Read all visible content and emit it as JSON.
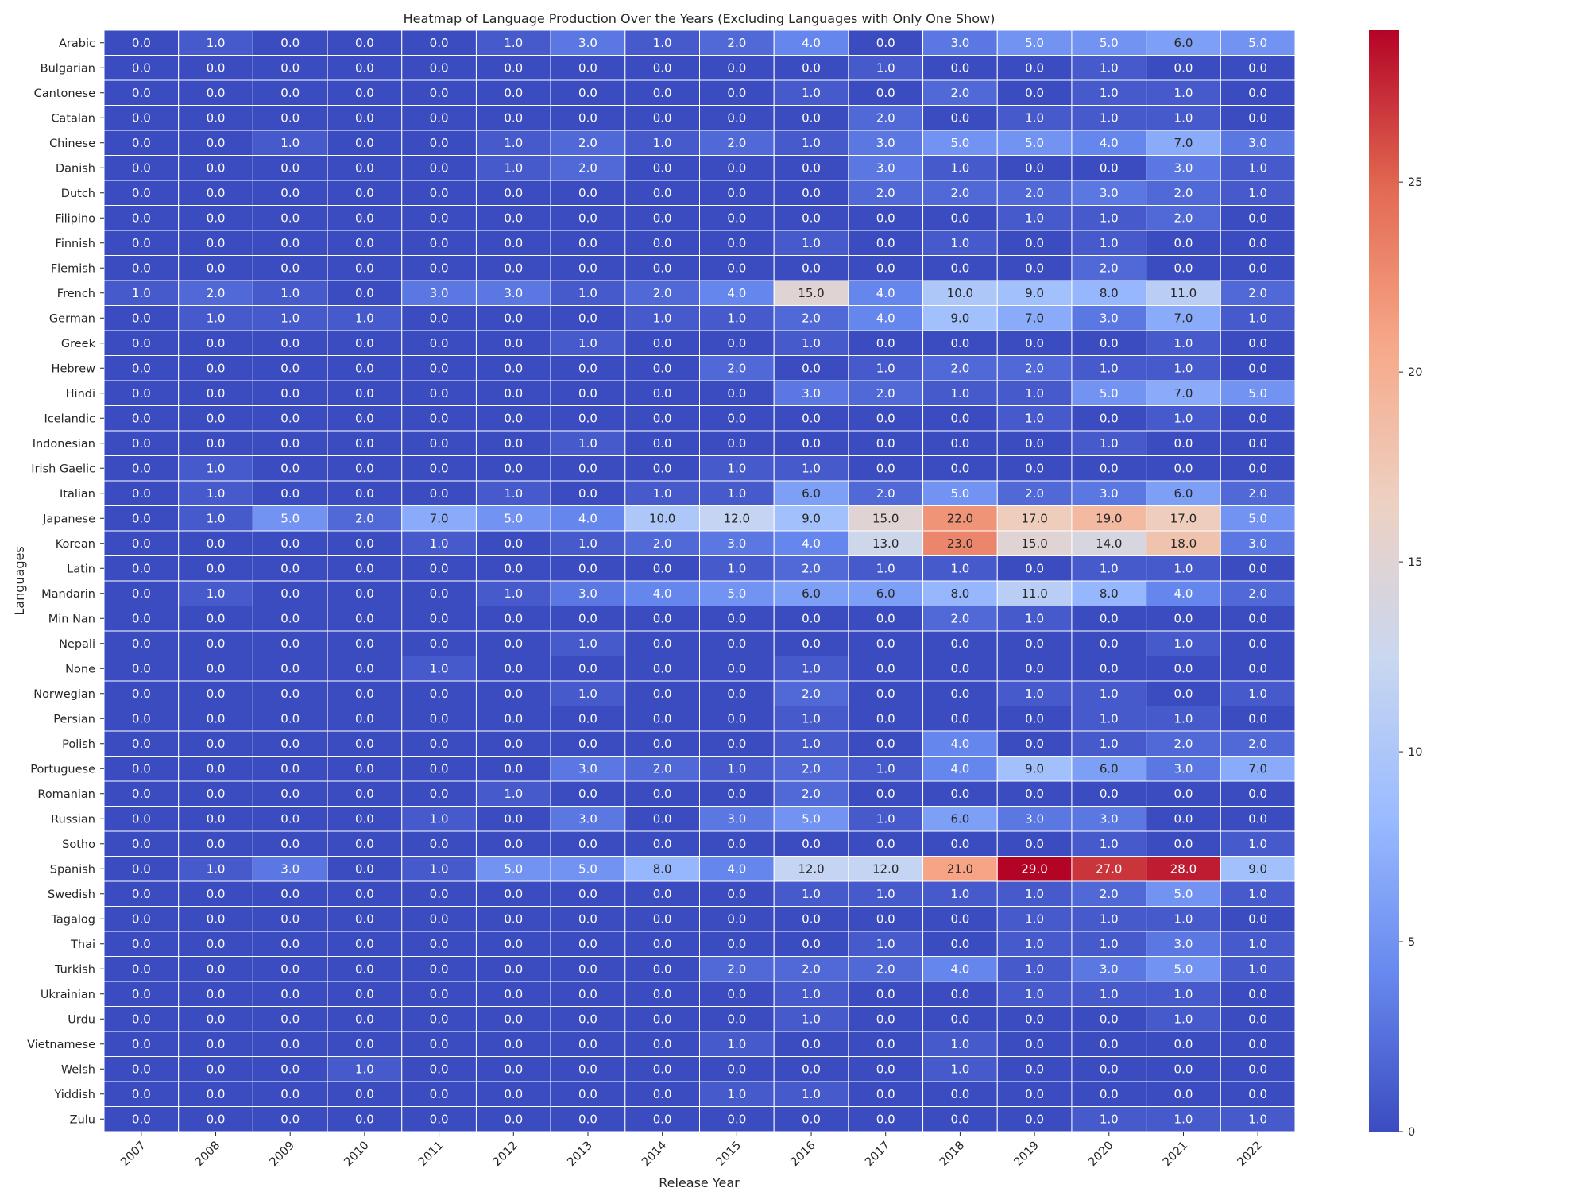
{
  "chart_data": {
    "type": "heatmap",
    "title": "Heatmap of Language Production Over the Years (Excluding Languages with Only One Show)",
    "xlabel": "Release Year",
    "ylabel": "Languages",
    "x": [
      "2007",
      "2008",
      "2009",
      "2010",
      "2011",
      "2012",
      "2013",
      "2014",
      "2015",
      "2016",
      "2017",
      "2018",
      "2019",
      "2020",
      "2021",
      "2022"
    ],
    "y": [
      "Arabic",
      "Bulgarian",
      "Cantonese",
      "Catalan",
      "Chinese",
      "Danish",
      "Dutch",
      "Filipino",
      "Finnish",
      "Flemish",
      "French",
      "German",
      "Greek",
      "Hebrew",
      "Hindi",
      "Icelandic",
      "Indonesian",
      "Irish Gaelic",
      "Italian",
      "Japanese",
      "Korean",
      "Latin",
      "Mandarin",
      "Min Nan",
      "Nepali",
      "None",
      "Norwegian",
      "Persian",
      "Polish",
      "Portuguese",
      "Romanian",
      "Russian",
      "Sotho",
      "Spanish",
      "Swedish",
      "Tagalog",
      "Thai",
      "Turkish",
      "Ukrainian",
      "Urdu",
      "Vietnamese",
      "Welsh",
      "Yiddish",
      "Zulu"
    ],
    "values": [
      [
        0,
        1,
        0,
        0,
        0,
        1,
        3,
        1,
        2,
        4,
        0,
        3,
        5,
        5,
        6,
        5
      ],
      [
        0,
        0,
        0,
        0,
        0,
        0,
        0,
        0,
        0,
        0,
        1,
        0,
        0,
        1,
        0,
        0
      ],
      [
        0,
        0,
        0,
        0,
        0,
        0,
        0,
        0,
        0,
        1,
        0,
        2,
        0,
        1,
        1,
        0
      ],
      [
        0,
        0,
        0,
        0,
        0,
        0,
        0,
        0,
        0,
        0,
        2,
        0,
        1,
        1,
        1,
        0
      ],
      [
        0,
        0,
        1,
        0,
        0,
        1,
        2,
        1,
        2,
        1,
        3,
        5,
        5,
        4,
        7,
        3
      ],
      [
        0,
        0,
        0,
        0,
        0,
        1,
        2,
        0,
        0,
        0,
        3,
        1,
        0,
        0,
        3,
        1
      ],
      [
        0,
        0,
        0,
        0,
        0,
        0,
        0,
        0,
        0,
        0,
        2,
        2,
        2,
        3,
        2,
        1
      ],
      [
        0,
        0,
        0,
        0,
        0,
        0,
        0,
        0,
        0,
        0,
        0,
        0,
        1,
        1,
        2,
        0
      ],
      [
        0,
        0,
        0,
        0,
        0,
        0,
        0,
        0,
        0,
        1,
        0,
        1,
        0,
        1,
        0,
        0
      ],
      [
        0,
        0,
        0,
        0,
        0,
        0,
        0,
        0,
        0,
        0,
        0,
        0,
        0,
        2,
        0,
        0
      ],
      [
        1,
        2,
        1,
        0,
        3,
        3,
        1,
        2,
        4,
        15,
        4,
        10,
        9,
        8,
        11,
        2
      ],
      [
        0,
        1,
        1,
        1,
        0,
        0,
        0,
        1,
        1,
        2,
        4,
        9,
        7,
        3,
        7,
        1
      ],
      [
        0,
        0,
        0,
        0,
        0,
        0,
        1,
        0,
        0,
        1,
        0,
        0,
        0,
        0,
        1,
        0
      ],
      [
        0,
        0,
        0,
        0,
        0,
        0,
        0,
        0,
        2,
        0,
        1,
        2,
        2,
        1,
        1,
        0
      ],
      [
        0,
        0,
        0,
        0,
        0,
        0,
        0,
        0,
        0,
        3,
        2,
        1,
        1,
        5,
        7,
        5
      ],
      [
        0,
        0,
        0,
        0,
        0,
        0,
        0,
        0,
        0,
        0,
        0,
        0,
        1,
        0,
        1,
        0
      ],
      [
        0,
        0,
        0,
        0,
        0,
        0,
        1,
        0,
        0,
        0,
        0,
        0,
        0,
        1,
        0,
        0
      ],
      [
        0,
        1,
        0,
        0,
        0,
        0,
        0,
        0,
        1,
        1,
        0,
        0,
        0,
        0,
        0,
        0
      ],
      [
        0,
        1,
        0,
        0,
        0,
        1,
        0,
        1,
        1,
        6,
        2,
        5,
        2,
        3,
        6,
        2
      ],
      [
        0,
        1,
        5,
        2,
        7,
        5,
        4,
        10,
        12,
        9,
        15,
        22,
        17,
        19,
        17,
        5
      ],
      [
        0,
        0,
        0,
        0,
        1,
        0,
        1,
        2,
        3,
        4,
        13,
        23,
        15,
        14,
        18,
        3
      ],
      [
        0,
        0,
        0,
        0,
        0,
        0,
        0,
        0,
        1,
        2,
        1,
        1,
        0,
        1,
        1,
        0
      ],
      [
        0,
        1,
        0,
        0,
        0,
        1,
        3,
        4,
        5,
        6,
        6,
        8,
        11,
        8,
        4,
        2
      ],
      [
        0,
        0,
        0,
        0,
        0,
        0,
        0,
        0,
        0,
        0,
        0,
        2,
        1,
        0,
        0,
        0
      ],
      [
        0,
        0,
        0,
        0,
        0,
        0,
        1,
        0,
        0,
        0,
        0,
        0,
        0,
        0,
        1,
        0
      ],
      [
        0,
        0,
        0,
        0,
        1,
        0,
        0,
        0,
        0,
        1,
        0,
        0,
        0,
        0,
        0,
        0
      ],
      [
        0,
        0,
        0,
        0,
        0,
        0,
        1,
        0,
        0,
        2,
        0,
        0,
        1,
        1,
        0,
        1
      ],
      [
        0,
        0,
        0,
        0,
        0,
        0,
        0,
        0,
        0,
        1,
        0,
        0,
        0,
        1,
        1,
        0
      ],
      [
        0,
        0,
        0,
        0,
        0,
        0,
        0,
        0,
        0,
        1,
        0,
        4,
        0,
        1,
        2,
        2
      ],
      [
        0,
        0,
        0,
        0,
        0,
        0,
        3,
        2,
        1,
        2,
        1,
        4,
        9,
        6,
        3,
        7
      ],
      [
        0,
        0,
        0,
        0,
        0,
        1,
        0,
        0,
        0,
        2,
        0,
        0,
        0,
        0,
        0,
        0
      ],
      [
        0,
        0,
        0,
        0,
        1,
        0,
        3,
        0,
        3,
        5,
        1,
        6,
        3,
        3,
        0,
        0
      ],
      [
        0,
        0,
        0,
        0,
        0,
        0,
        0,
        0,
        0,
        0,
        0,
        0,
        0,
        1,
        0,
        1
      ],
      [
        0,
        1,
        3,
        0,
        1,
        5,
        5,
        8,
        4,
        12,
        12,
        21,
        29,
        27,
        28,
        9
      ],
      [
        0,
        0,
        0,
        0,
        0,
        0,
        0,
        0,
        0,
        1,
        1,
        1,
        1,
        2,
        5,
        1
      ],
      [
        0,
        0,
        0,
        0,
        0,
        0,
        0,
        0,
        0,
        0,
        0,
        0,
        1,
        1,
        1,
        0
      ],
      [
        0,
        0,
        0,
        0,
        0,
        0,
        0,
        0,
        0,
        0,
        1,
        0,
        1,
        1,
        3,
        1
      ],
      [
        0,
        0,
        0,
        0,
        0,
        0,
        0,
        0,
        2,
        2,
        2,
        4,
        1,
        3,
        5,
        1
      ],
      [
        0,
        0,
        0,
        0,
        0,
        0,
        0,
        0,
        0,
        1,
        0,
        0,
        1,
        1,
        1,
        0
      ],
      [
        0,
        0,
        0,
        0,
        0,
        0,
        0,
        0,
        0,
        1,
        0,
        0,
        0,
        0,
        1,
        0
      ],
      [
        0,
        0,
        0,
        0,
        0,
        0,
        0,
        0,
        1,
        0,
        0,
        1,
        0,
        0,
        0,
        0
      ],
      [
        0,
        0,
        0,
        1,
        0,
        0,
        0,
        0,
        0,
        0,
        0,
        1,
        0,
        0,
        0,
        0
      ],
      [
        0,
        0,
        0,
        0,
        0,
        0,
        0,
        0,
        1,
        1,
        0,
        0,
        0,
        0,
        0,
        0
      ],
      [
        0,
        0,
        0,
        0,
        0,
        0,
        0,
        0,
        0,
        0,
        0,
        0,
        0,
        1,
        1,
        1
      ]
    ],
    "vmin": 0,
    "vmax": 29,
    "colormap": "coolwarm",
    "annotation_format": "0.0",
    "colorbar_ticks": [
      0,
      5,
      10,
      15,
      20,
      25
    ],
    "grid": false,
    "cell_border_color": "#ffffff",
    "colormap_stops": [
      "#3b4cc0",
      "#6788ee",
      "#9abbff",
      "#c9d7f0",
      "#edd1c2",
      "#f7a889",
      "#e26952",
      "#b40426"
    ]
  }
}
